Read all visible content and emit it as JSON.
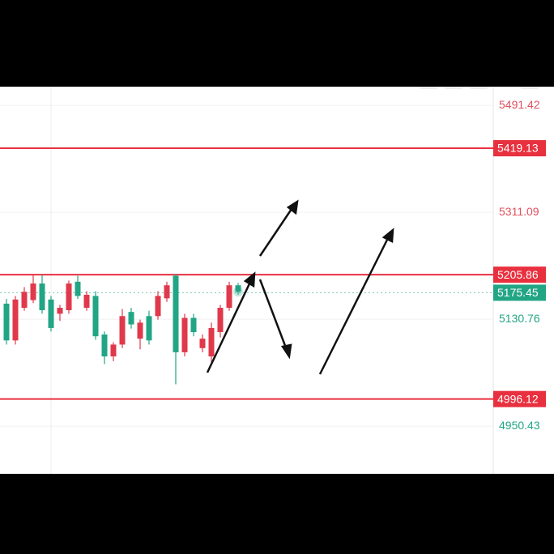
{
  "chart_data": {
    "type": "candlestick",
    "ylim": [
      4870,
      5523
    ],
    "yticks": [
      5491.42,
      5311.09,
      5130.76,
      4950.43
    ],
    "grid": true,
    "up_color": "#e0394b",
    "down_color": "#22a584",
    "tick_colors": [
      "#e0505e",
      "#e0505e",
      "#22a584",
      "#22a584"
    ],
    "levels": [
      {
        "value": 5419.13,
        "color": "#e8303f"
      },
      {
        "value": 5205.86,
        "color": "#e8303f"
      },
      {
        "value": 4996.12,
        "color": "#e8303f"
      }
    ],
    "last_price": {
      "value": 5175.45,
      "color": "#22a584"
    },
    "candles": [
      {
        "open": 5157,
        "high": 5165,
        "low": 5088,
        "close": 5095
      },
      {
        "open": 5095,
        "high": 5170,
        "low": 5088,
        "close": 5164
      },
      {
        "open": 5150,
        "high": 5185,
        "low": 5145,
        "close": 5177
      },
      {
        "open": 5163,
        "high": 5205,
        "low": 5158,
        "close": 5191
      },
      {
        "open": 5191,
        "high": 5205,
        "low": 5140,
        "close": 5146
      },
      {
        "open": 5164,
        "high": 5170,
        "low": 5110,
        "close": 5116
      },
      {
        "open": 5140,
        "high": 5155,
        "low": 5128,
        "close": 5150
      },
      {
        "open": 5146,
        "high": 5196,
        "low": 5140,
        "close": 5191
      },
      {
        "open": 5194,
        "high": 5204,
        "low": 5165,
        "close": 5170
      },
      {
        "open": 5150,
        "high": 5178,
        "low": 5145,
        "close": 5172
      },
      {
        "open": 5170,
        "high": 5178,
        "low": 5096,
        "close": 5102
      },
      {
        "open": 5105,
        "high": 5110,
        "low": 5055,
        "close": 5068
      },
      {
        "open": 5068,
        "high": 5092,
        "low": 5060,
        "close": 5088
      },
      {
        "open": 5088,
        "high": 5148,
        "low": 5082,
        "close": 5136
      },
      {
        "open": 5143,
        "high": 5150,
        "low": 5115,
        "close": 5122
      },
      {
        "open": 5098,
        "high": 5130,
        "low": 5080,
        "close": 5125
      },
      {
        "open": 5136,
        "high": 5145,
        "low": 5088,
        "close": 5095
      },
      {
        "open": 5136,
        "high": 5178,
        "low": 5130,
        "close": 5170
      },
      {
        "open": 5166,
        "high": 5194,
        "low": 5160,
        "close": 5188
      },
      {
        "open": 5204,
        "high": 5207,
        "low": 5021,
        "close": 5075
      },
      {
        "open": 5075,
        "high": 5140,
        "low": 5068,
        "close": 5133
      },
      {
        "open": 5133,
        "high": 5140,
        "low": 5102,
        "close": 5109
      },
      {
        "open": 5082,
        "high": 5105,
        "low": 5075,
        "close": 5098
      },
      {
        "open": 5068,
        "high": 5125,
        "low": 5058,
        "close": 5116
      },
      {
        "open": 5109,
        "high": 5155,
        "low": 5100,
        "close": 5150
      },
      {
        "open": 5150,
        "high": 5194,
        "low": 5145,
        "close": 5188
      },
      {
        "open": 5188,
        "high": 5192,
        "low": 5172,
        "close": 5177
      }
    ]
  }
}
